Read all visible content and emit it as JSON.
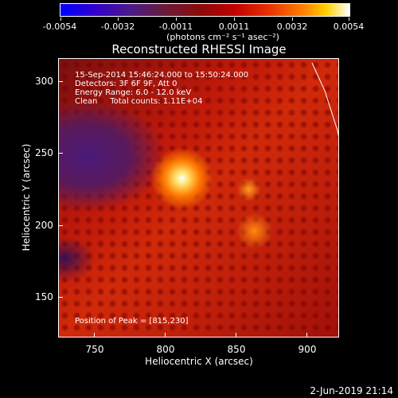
{
  "colorbar": {
    "ticks": [
      "-0.0054",
      "-0.0032",
      "-0.0011",
      "0.0011",
      "0.0032",
      "0.0054"
    ],
    "units": "(photons cm⁻² s⁻¹ asec⁻²)",
    "colors": [
      "#0000ff",
      "#4a1a8a",
      "#8a0a0a",
      "#e83000",
      "#ffd000",
      "#ffffff"
    ]
  },
  "image": {
    "title": "Reconstructed RHESSI Image",
    "info_lines": [
      "15-Sep-2014 15:46:24.000 to 15:50:24.000",
      "Detectors: 3F 6F 9F, Att 0",
      "Energy Range: 6.0 - 12.0 keV",
      "Clean     Total counts: 1.11E+04"
    ],
    "peak_text": "Position of Peak = [815,230]",
    "x_ticks": [
      "750",
      "800",
      "850",
      "900"
    ],
    "y_ticks": [
      "300",
      "250",
      "200",
      "150"
    ],
    "x_label": "Heliocentric X (arcsec)",
    "y_label": "Heliocentric Y (arcsec)"
  },
  "footer": {
    "timestamp": "2-Jun-2019 21:14"
  }
}
